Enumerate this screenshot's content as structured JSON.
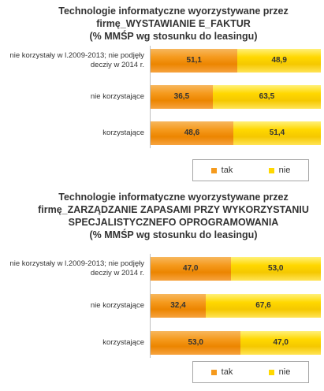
{
  "chart_data": [
    {
      "type": "bar",
      "stacked": true,
      "orientation": "horizontal",
      "title_lines": [
        "Technologie informatyczne wyorzystywane przez",
        "firmę_WYSTAWIANIE E_FAKTUR",
        "(% MMŚP wg stosunku do leasingu)"
      ],
      "categories": [
        "nie korzystały w l.2009-2013; nie podjęły decziy w 2014 r.",
        "nie korzystające",
        "korzystające"
      ],
      "series": [
        {
          "name": "tak",
          "color": "#f59a1d",
          "values": [
            51.1,
            36.5,
            48.6
          ]
        },
        {
          "name": "nie",
          "color": "#ffd800",
          "values": [
            48.9,
            63.5,
            51.4
          ]
        }
      ],
      "xlim": [
        0,
        100
      ],
      "legend_position": "bottom-right"
    },
    {
      "type": "bar",
      "stacked": true,
      "orientation": "horizontal",
      "title_lines": [
        "Technologie informatyczne wyorzystywane przez",
        "firmę_ZARZĄDZANIE ZAPASAMI PRZY WYKORZYSTANIU",
        "SPECJALISTYCZNEFO OPROGRAMOWANIA",
        "(% MMŚP wg stosunku do leasingu)"
      ],
      "categories": [
        "nie korzystały w l.2009-2013; nie podjęły decziy w 2014 r.",
        "nie korzystające",
        "korzystające"
      ],
      "series": [
        {
          "name": "tak",
          "color": "#f59a1d",
          "values": [
            47.0,
            32.4,
            53.0
          ]
        },
        {
          "name": "nie",
          "color": "#ffd800",
          "values": [
            53.0,
            67.6,
            47.0
          ]
        }
      ],
      "xlim": [
        0,
        100
      ],
      "legend_position": "bottom-right"
    }
  ]
}
